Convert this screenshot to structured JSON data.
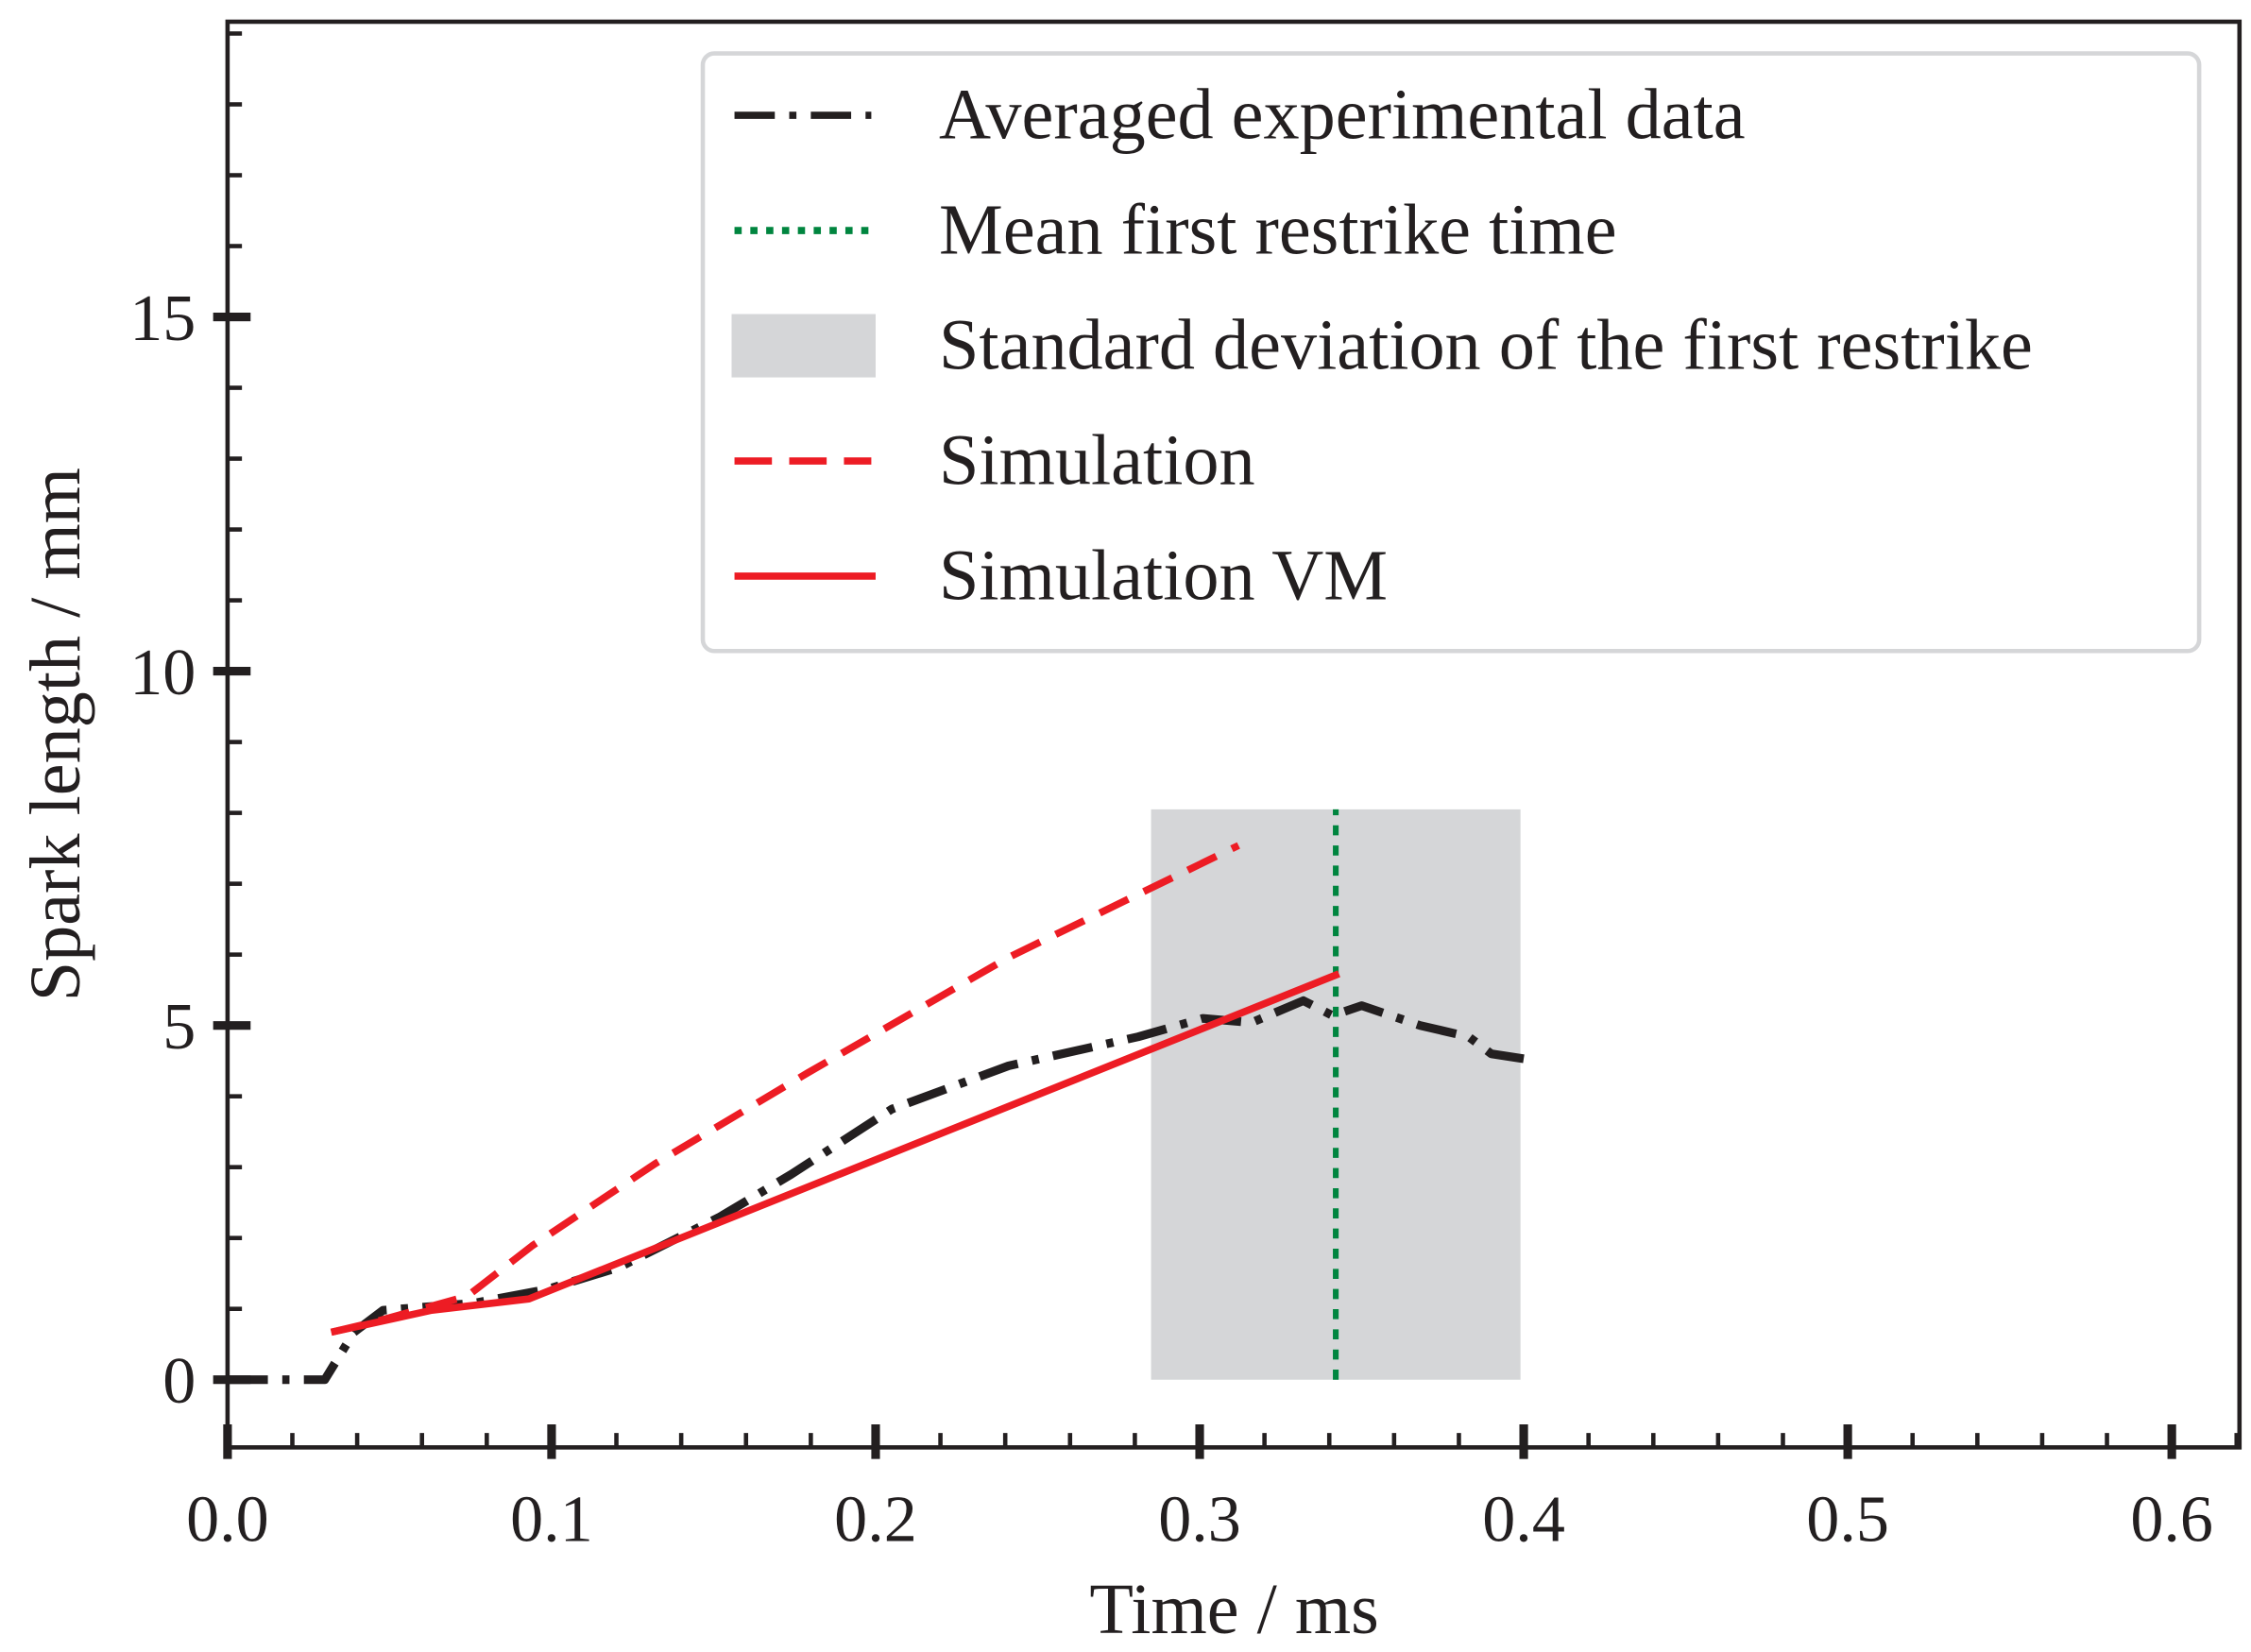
{
  "chart_data": {
    "type": "line",
    "title": "",
    "xlabel": "Time / ms",
    "ylabel": "Spark length / mm",
    "xlim": [
      0,
      0.621
    ],
    "ylim": [
      -0.95,
      19.2
    ],
    "xticks": [
      0.0,
      0.1,
      0.2,
      0.3,
      0.4,
      0.5,
      0.6
    ],
    "xtick_labels": [
      "0.0",
      "0.1",
      "0.2",
      "0.3",
      "0.4",
      "0.5",
      "0.6"
    ],
    "yticks": [
      0,
      5,
      10,
      15
    ],
    "ytick_labels": [
      "0",
      "5",
      "10",
      "15"
    ],
    "grid": false,
    "legend_position": "top-right",
    "series": [
      {
        "name": "Averaged experimental data",
        "style": "dash-dot",
        "color": "#231f20",
        "x": [
          0,
          0.03,
          0.039,
          0.048,
          0.076,
          0.099,
          0.121,
          0.152,
          0.174,
          0.205,
          0.241,
          0.281,
          0.301,
          0.316,
          0.332,
          0.341,
          0.35,
          0.368,
          0.383,
          0.39,
          0.4
        ],
        "y": [
          0,
          0,
          0.67,
          0.98,
          1.08,
          1.28,
          1.59,
          2.3,
          2.9,
          3.82,
          4.43,
          4.84,
          5.1,
          5.04,
          5.35,
          5.14,
          5.28,
          5.0,
          4.84,
          4.6,
          4.53
        ]
      },
      {
        "name": "Simulation",
        "style": "dashed",
        "color": "#ed1c24",
        "x": [
          0.032,
          0.045,
          0.074,
          0.094,
          0.132,
          0.179,
          0.241,
          0.312
        ],
        "y": [
          0.67,
          0.81,
          1.18,
          1.89,
          3.05,
          4.33,
          5.96,
          7.54
        ]
      },
      {
        "name": "Simulation VM",
        "style": "solid",
        "color": "#ed1c24",
        "x": [
          0.032,
          0.063,
          0.093,
          0.343
        ],
        "y": [
          0.67,
          0.98,
          1.14,
          5.73
        ]
      }
    ],
    "annotations": [
      {
        "name": "Mean first restrike time",
        "type": "vline",
        "style": "dotted",
        "color": "#00853f",
        "x": 0.342,
        "y_range": [
          0,
          8.05
        ]
      },
      {
        "name": "Standard deviation of the first restrike",
        "type": "span",
        "color": "#d5d6d8",
        "x_range": [
          0.285,
          0.399
        ],
        "y_range": [
          0,
          8.05
        ]
      }
    ],
    "legend": [
      "Averaged experimental data",
      "Mean first restrike time",
      "Standard deviation of the first restrike",
      "Simulation",
      "Simulation VM"
    ]
  }
}
